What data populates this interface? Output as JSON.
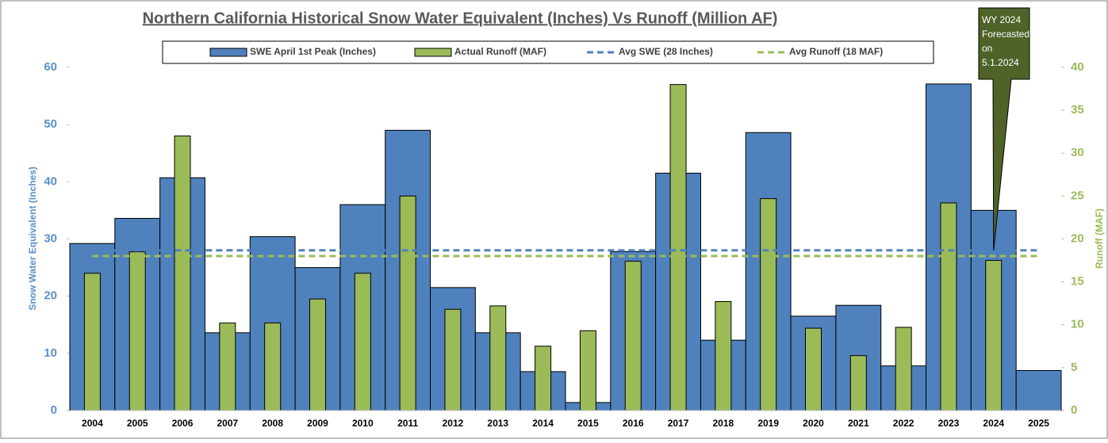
{
  "chart_data": {
    "type": "bar",
    "title": "Northern California Historical Snow Water Equivalent (Inches) Vs Runoff (Million AF)",
    "ylabel": "Snow Water Equivalent (Inches)",
    "y2label": "Runoff (MAF)",
    "categories": [
      "2004",
      "2005",
      "2006",
      "2007",
      "2008",
      "2009",
      "2010",
      "2011",
      "2012",
      "2013",
      "2014",
      "2015",
      "2016",
      "2017",
      "2018",
      "2019",
      "2020",
      "2021",
      "2022",
      "2023",
      "2024",
      "2025"
    ],
    "series": [
      {
        "name": "SWE April 1st Peak (Inches)",
        "kind": "bar",
        "color": "#4f81bd",
        "values": [
          29.2,
          33.6,
          40.7,
          13.6,
          30.4,
          25,
          36,
          49,
          21.5,
          13.6,
          6.8,
          1.4,
          27.8,
          41.5,
          12.3,
          48.6,
          16.5,
          18.4,
          7.8,
          57.1,
          35,
          7
        ]
      },
      {
        "name": "Actual Runoff (MAF)",
        "kind": "bar",
        "axis": "y2",
        "color": "#9bbb59",
        "values": [
          16,
          18.5,
          32,
          10.2,
          10.2,
          13,
          16,
          25,
          11.8,
          12.2,
          7.5,
          9.3,
          17.4,
          38,
          12.7,
          24.7,
          9.6,
          6.4,
          9.7,
          24.2,
          17.5,
          null
        ]
      },
      {
        "name": "Avg SWE (28 Inches)",
        "kind": "dashed",
        "color": "#4f81bd",
        "values": [
          28,
          28,
          28,
          28,
          28,
          28,
          28,
          28,
          28,
          28,
          28,
          28,
          28,
          28,
          28,
          28,
          28,
          28,
          28,
          28,
          28,
          28
        ]
      },
      {
        "name": "Avg Runoff (18 MAF)",
        "kind": "dashed",
        "axis": "y2",
        "color": "#9bbb59",
        "values": [
          18,
          18,
          18,
          18,
          18,
          18,
          18,
          18,
          18,
          18,
          18,
          18,
          18,
          18,
          18,
          18,
          18,
          18,
          18,
          18,
          18,
          18
        ]
      }
    ],
    "ylim": [
      0,
      60
    ],
    "yticks": [
      0,
      10,
      20,
      30,
      40,
      50,
      60
    ],
    "y2lim": [
      0,
      40
    ],
    "y2ticks": [
      0,
      5,
      10,
      15,
      20,
      25,
      30,
      35,
      40
    ],
    "legend": "top",
    "annotation": {
      "lines": [
        "WY 2024",
        "Forecasted",
        "on",
        "5.1.2024"
      ],
      "category": "2024",
      "value": 28,
      "color": "#4f6228"
    }
  }
}
